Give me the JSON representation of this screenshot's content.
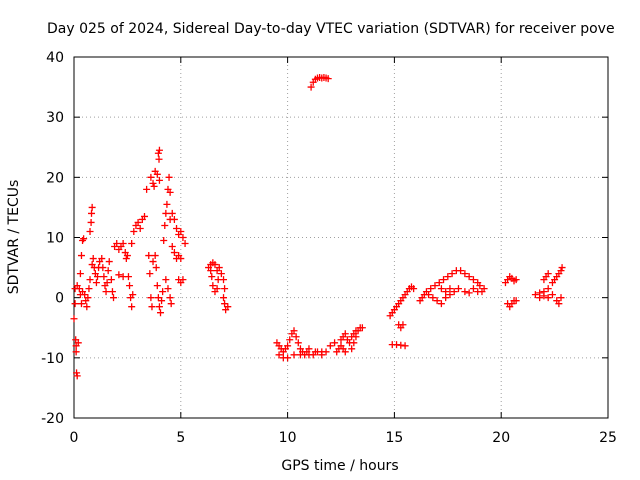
{
  "chart_data": {
    "type": "scatter",
    "title": "Day 025 of 2024, Sidereal Day-to-day VTEC variation (SDTVAR) for receiver pove",
    "xlabel": "GPS time / hours",
    "ylabel": "SDTVAR / TECUs",
    "xlim": [
      0,
      25
    ],
    "ylim": [
      -20,
      40
    ],
    "xticks": [
      "0",
      "5",
      "10",
      "15",
      "20",
      "25"
    ],
    "yticks": [
      "-20",
      "-10",
      "0",
      "10",
      "20",
      "30",
      "40"
    ],
    "grid": true,
    "marker": "+",
    "marker_color": "#ff0000",
    "series": [
      {
        "name": "SDTVAR",
        "points": [
          [
            0.0,
            -3.5
          ],
          [
            0.05,
            -1.0
          ],
          [
            0.05,
            1.5
          ],
          [
            0.08,
            -7.0
          ],
          [
            0.1,
            -9.0
          ],
          [
            0.12,
            -12.5
          ],
          [
            0.15,
            -13.0
          ],
          [
            0.1,
            -8.0
          ],
          [
            0.2,
            -7.5
          ],
          [
            0.15,
            2.0
          ],
          [
            0.25,
            1.5
          ],
          [
            0.3,
            0.5
          ],
          [
            0.35,
            -1.0
          ],
          [
            0.4,
            1.0
          ],
          [
            0.3,
            4.0
          ],
          [
            0.35,
            7.0
          ],
          [
            0.4,
            9.5
          ],
          [
            0.45,
            9.8
          ],
          [
            0.5,
            0.5
          ],
          [
            0.55,
            -0.5
          ],
          [
            0.6,
            -1.5
          ],
          [
            0.65,
            0.0
          ],
          [
            0.7,
            1.5
          ],
          [
            0.75,
            3.0
          ],
          [
            0.75,
            11.0
          ],
          [
            0.8,
            12.5
          ],
          [
            0.82,
            14.0
          ],
          [
            0.85,
            15.0
          ],
          [
            0.85,
            5.5
          ],
          [
            0.9,
            6.5
          ],
          [
            0.95,
            5.0
          ],
          [
            1.0,
            4.0
          ],
          [
            1.05,
            2.5
          ],
          [
            1.1,
            3.5
          ],
          [
            1.15,
            5.0
          ],
          [
            1.2,
            6.0
          ],
          [
            1.3,
            6.5
          ],
          [
            1.35,
            5.0
          ],
          [
            1.4,
            3.5
          ],
          [
            1.45,
            2.0
          ],
          [
            1.5,
            1.0
          ],
          [
            1.55,
            2.5
          ],
          [
            1.6,
            4.5
          ],
          [
            1.65,
            6.0
          ],
          [
            1.75,
            3.0
          ],
          [
            1.8,
            1.0
          ],
          [
            1.85,
            0.0
          ],
          [
            1.9,
            8.5
          ],
          [
            2.0,
            9.0
          ],
          [
            2.1,
            8.0
          ],
          [
            2.2,
            8.5
          ],
          [
            2.3,
            9.0
          ],
          [
            2.4,
            7.5
          ],
          [
            2.45,
            6.5
          ],
          [
            2.5,
            7.0
          ],
          [
            2.1,
            3.8
          ],
          [
            2.3,
            3.5
          ],
          [
            2.55,
            3.5
          ],
          [
            2.6,
            2.0
          ],
          [
            2.65,
            0.0
          ],
          [
            2.7,
            -1.5
          ],
          [
            2.75,
            0.5
          ],
          [
            2.7,
            9.0
          ],
          [
            2.8,
            11.0
          ],
          [
            2.9,
            12.0
          ],
          [
            3.0,
            12.5
          ],
          [
            3.1,
            11.5
          ],
          [
            3.2,
            13.0
          ],
          [
            3.3,
            13.5
          ],
          [
            3.4,
            18.0
          ],
          [
            3.6,
            20.0
          ],
          [
            3.7,
            19.0
          ],
          [
            3.75,
            18.5
          ],
          [
            3.8,
            21.0
          ],
          [
            3.9,
            20.5
          ],
          [
            4.0,
            19.5
          ],
          [
            3.5,
            7.0
          ],
          [
            3.55,
            4.0
          ],
          [
            3.6,
            0.0
          ],
          [
            3.65,
            -1.5
          ],
          [
            3.7,
            6.0
          ],
          [
            3.8,
            7.0
          ],
          [
            3.85,
            5.0
          ],
          [
            3.9,
            2.0
          ],
          [
            3.95,
            0.0
          ],
          [
            4.0,
            -1.5
          ],
          [
            4.05,
            -2.5
          ],
          [
            4.1,
            -0.5
          ],
          [
            4.15,
            1.0
          ],
          [
            3.95,
            24.0
          ],
          [
            4.0,
            24.5
          ],
          [
            3.98,
            23.0
          ],
          [
            4.2,
            9.5
          ],
          [
            4.25,
            12.0
          ],
          [
            4.3,
            14.0
          ],
          [
            4.35,
            15.5
          ],
          [
            4.4,
            18.0
          ],
          [
            4.45,
            20.0
          ],
          [
            4.5,
            17.5
          ],
          [
            4.5,
            13.0
          ],
          [
            4.6,
            14.0
          ],
          [
            4.7,
            13.0
          ],
          [
            4.8,
            11.5
          ],
          [
            4.9,
            10.5
          ],
          [
            5.0,
            11.0
          ],
          [
            5.1,
            10.0
          ],
          [
            5.2,
            9.0
          ],
          [
            4.3,
            3.0
          ],
          [
            4.4,
            1.5
          ],
          [
            4.5,
            0.0
          ],
          [
            4.55,
            -1.0
          ],
          [
            4.6,
            8.5
          ],
          [
            4.7,
            7.5
          ],
          [
            4.8,
            6.5
          ],
          [
            4.9,
            7.0
          ],
          [
            5.0,
            6.5
          ],
          [
            4.9,
            3.0
          ],
          [
            5.0,
            2.5
          ],
          [
            5.1,
            3.0
          ],
          [
            6.3,
            5.0
          ],
          [
            6.4,
            5.5
          ],
          [
            6.5,
            5.8
          ],
          [
            6.6,
            5.5
          ],
          [
            6.7,
            4.5
          ],
          [
            6.75,
            3.0
          ],
          [
            6.7,
            1.5
          ],
          [
            6.6,
            1.0
          ],
          [
            6.5,
            2.0
          ],
          [
            6.45,
            3.5
          ],
          [
            6.4,
            4.5
          ],
          [
            6.8,
            5.0
          ],
          [
            6.9,
            4.0
          ],
          [
            7.0,
            3.0
          ],
          [
            7.05,
            1.5
          ],
          [
            7.0,
            0.0
          ],
          [
            7.05,
            -1.0
          ],
          [
            7.1,
            -2.0
          ],
          [
            7.2,
            -1.5
          ],
          [
            9.5,
            -7.5
          ],
          [
            9.6,
            -8.0
          ],
          [
            9.7,
            -8.5
          ],
          [
            9.8,
            -9.0
          ],
          [
            9.9,
            -8.5
          ],
          [
            10.0,
            -8.0
          ],
          [
            10.1,
            -7.0
          ],
          [
            10.2,
            -6.0
          ],
          [
            10.3,
            -5.5
          ],
          [
            10.4,
            -6.5
          ],
          [
            10.5,
            -7.5
          ],
          [
            10.6,
            -8.5
          ],
          [
            10.7,
            -9.0
          ],
          [
            10.8,
            -9.5
          ],
          [
            10.9,
            -9.0
          ],
          [
            11.0,
            -8.5
          ],
          [
            9.6,
            -9.5
          ],
          [
            9.8,
            -10.0
          ],
          [
            10.0,
            -10.0
          ],
          [
            10.3,
            -9.5
          ],
          [
            10.6,
            -9.5
          ],
          [
            11.0,
            -9.5
          ],
          [
            11.3,
            -9.0
          ],
          [
            11.6,
            -9.0
          ],
          [
            11.2,
            -9.5
          ],
          [
            11.4,
            -9.0
          ],
          [
            11.6,
            -9.5
          ],
          [
            11.8,
            -9.0
          ],
          [
            12.0,
            -8.0
          ],
          [
            12.2,
            -7.5
          ],
          [
            11.1,
            35.0
          ],
          [
            11.2,
            35.8
          ],
          [
            11.3,
            36.3
          ],
          [
            11.4,
            36.5
          ],
          [
            11.5,
            36.6
          ],
          [
            11.6,
            36.5
          ],
          [
            11.7,
            36.6
          ],
          [
            11.8,
            36.5
          ],
          [
            11.9,
            36.4
          ],
          [
            12.3,
            -9.0
          ],
          [
            12.4,
            -8.5
          ],
          [
            12.5,
            -8.0
          ],
          [
            12.6,
            -8.5
          ],
          [
            12.7,
            -9.0
          ],
          [
            12.5,
            -7.0
          ],
          [
            12.6,
            -6.5
          ],
          [
            12.7,
            -6.0
          ],
          [
            12.8,
            -7.0
          ],
          [
            12.9,
            -7.5
          ],
          [
            13.0,
            -6.5
          ],
          [
            13.1,
            -6.0
          ],
          [
            13.2,
            -5.5
          ],
          [
            13.0,
            -8.5
          ],
          [
            13.1,
            -7.5
          ],
          [
            13.2,
            -6.5
          ],
          [
            13.3,
            -5.5
          ],
          [
            13.4,
            -5.0
          ],
          [
            13.5,
            -5.0
          ],
          [
            14.8,
            -3.0
          ],
          [
            14.9,
            -2.5
          ],
          [
            15.0,
            -2.0
          ],
          [
            15.1,
            -1.5
          ],
          [
            15.2,
            -1.0
          ],
          [
            15.3,
            -0.5
          ],
          [
            15.2,
            -4.5
          ],
          [
            15.3,
            -5.0
          ],
          [
            15.4,
            -4.5
          ],
          [
            15.4,
            0.0
          ],
          [
            15.5,
            0.5
          ],
          [
            15.6,
            1.0
          ],
          [
            15.7,
            1.5
          ],
          [
            15.8,
            1.8
          ],
          [
            15.9,
            1.5
          ],
          [
            14.9,
            -7.8
          ],
          [
            15.1,
            -7.8
          ],
          [
            15.3,
            -7.9
          ],
          [
            15.5,
            -8.0
          ],
          [
            16.2,
            -0.5
          ],
          [
            16.3,
            0.0
          ],
          [
            16.4,
            0.5
          ],
          [
            16.5,
            1.0
          ],
          [
            16.7,
            1.5
          ],
          [
            16.9,
            2.0
          ],
          [
            17.1,
            2.5
          ],
          [
            17.3,
            3.0
          ],
          [
            16.6,
            0.5
          ],
          [
            16.8,
            0.0
          ],
          [
            17.0,
            -0.5
          ],
          [
            17.2,
            -1.0
          ],
          [
            17.4,
            0.0
          ],
          [
            17.6,
            0.5
          ],
          [
            17.8,
            1.0
          ],
          [
            18.0,
            1.5
          ],
          [
            17.5,
            3.5
          ],
          [
            17.7,
            4.0
          ],
          [
            17.9,
            4.5
          ],
          [
            18.1,
            4.5
          ],
          [
            18.3,
            4.0
          ],
          [
            18.5,
            3.5
          ],
          [
            18.7,
            3.0
          ],
          [
            18.9,
            2.5
          ],
          [
            19.0,
            2.0
          ],
          [
            18.3,
            1.0
          ],
          [
            18.5,
            0.8
          ],
          [
            18.7,
            1.5
          ],
          [
            18.9,
            1.0
          ],
          [
            19.1,
            1.0
          ],
          [
            19.2,
            1.5
          ],
          [
            17.2,
            1.5
          ],
          [
            17.4,
            1.0
          ],
          [
            17.6,
            1.5
          ],
          [
            20.2,
            2.5
          ],
          [
            20.3,
            3.0
          ],
          [
            20.4,
            3.5
          ],
          [
            20.5,
            3.2
          ],
          [
            20.6,
            2.8
          ],
          [
            20.7,
            3.0
          ],
          [
            20.3,
            -1.0
          ],
          [
            20.4,
            -1.5
          ],
          [
            20.5,
            -1.0
          ],
          [
            20.6,
            -0.5
          ],
          [
            20.7,
            -0.5
          ],
          [
            21.6,
            0.5
          ],
          [
            21.8,
            0.8
          ],
          [
            22.0,
            1.0
          ],
          [
            22.2,
            1.5
          ],
          [
            22.4,
            2.5
          ],
          [
            22.5,
            3.0
          ],
          [
            22.6,
            3.5
          ],
          [
            22.7,
            4.0
          ],
          [
            22.8,
            4.5
          ],
          [
            22.85,
            5.0
          ],
          [
            21.8,
            0.0
          ],
          [
            22.0,
            0.3
          ],
          [
            22.2,
            0.0
          ],
          [
            22.4,
            0.5
          ],
          [
            22.6,
            -0.5
          ],
          [
            22.7,
            -1.0
          ],
          [
            22.8,
            0.0
          ],
          [
            22.0,
            3.0
          ],
          [
            22.1,
            3.5
          ],
          [
            22.2,
            4.0
          ]
        ]
      }
    ]
  }
}
